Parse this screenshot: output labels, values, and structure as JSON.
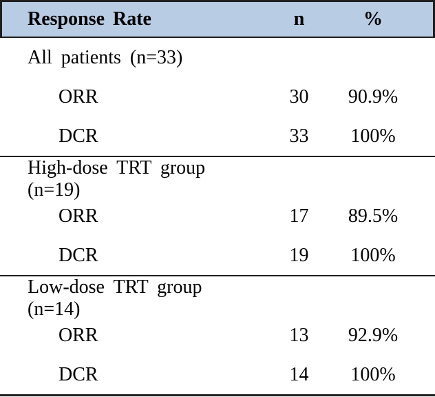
{
  "table": {
    "header": {
      "col_label": "Response Rate",
      "col_n": "n",
      "col_pct": "%"
    },
    "sections": [
      {
        "group_label": "All patients (n=33)",
        "rows": [
          {
            "label": "ORR",
            "n": "30",
            "pct": "90.9%"
          },
          {
            "label": "DCR",
            "n": "33",
            "pct": "100%"
          }
        ]
      },
      {
        "group_label": "High-dose TRT group (n=19)",
        "rows": [
          {
            "label": "ORR",
            "n": "17",
            "pct": "89.5%"
          },
          {
            "label": "DCR",
            "n": "19",
            "pct": "100%"
          }
        ]
      },
      {
        "group_label": "Low-dose TRT group (n=14)",
        "rows": [
          {
            "label": "ORR",
            "n": "13",
            "pct": "92.9%"
          },
          {
            "label": "DCR",
            "n": "14",
            "pct": "100%"
          }
        ]
      }
    ],
    "colors": {
      "header_bg": "#b8cce4",
      "border": "#1f1f1f",
      "text": "#000000",
      "background": "#ffffff"
    }
  }
}
